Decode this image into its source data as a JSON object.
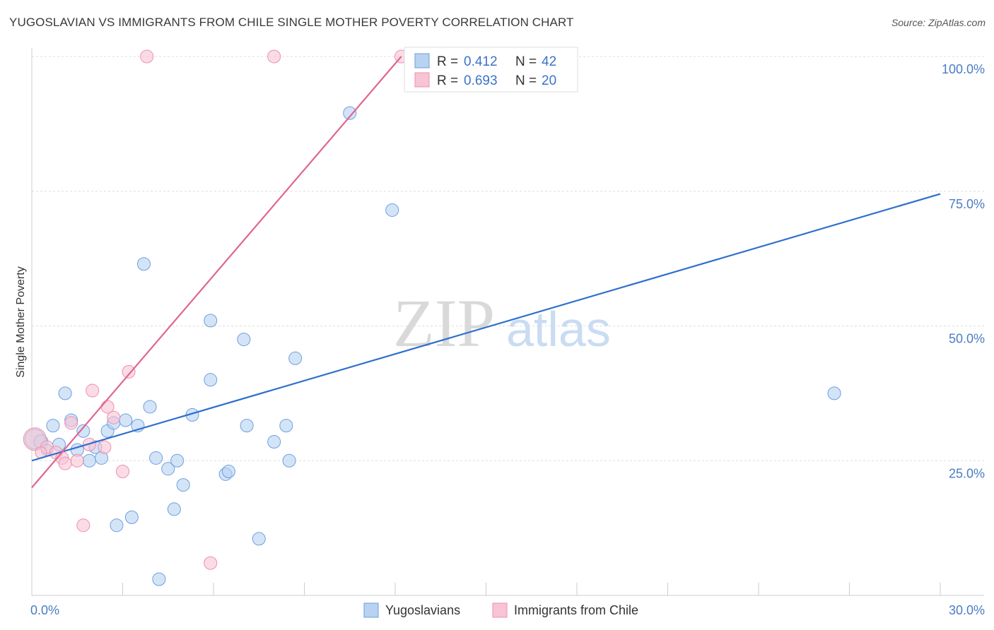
{
  "header": {
    "title": "YUGOSLAVIAN VS IMMIGRANTS FROM CHILE SINGLE MOTHER POVERTY CORRELATION CHART",
    "source": "Source: ZipAtlas.com"
  },
  "watermark": {
    "zip": "ZIP",
    "atlas": "atlas"
  },
  "colors": {
    "blue_fill": "#b8d2f2",
    "blue_stroke": "#6d9fde",
    "blue_line": "#2e6fcc",
    "pink_fill": "#f8c4d4",
    "pink_stroke": "#ec8fae",
    "pink_line": "#e0668f",
    "grid": "#dddddd",
    "label": "#4a7cc4"
  },
  "chart_data": {
    "type": "scatter",
    "title": "YUGOSLAVIAN VS IMMIGRANTS FROM CHILE SINGLE MOTHER POVERTY CORRELATION CHART",
    "xlabel": "",
    "ylabel": "Single Mother Poverty",
    "xlim": [
      0,
      30
    ],
    "ylim": [
      0,
      100
    ],
    "x_tick_labels": [
      "0.0%",
      "30.0%"
    ],
    "y_ticks": [
      25,
      50,
      75,
      100
    ],
    "y_tick_labels": [
      "25.0%",
      "50.0%",
      "75.0%",
      "100.0%"
    ],
    "grid": true,
    "legend_position": "top-center",
    "legend": [
      {
        "r_label": "R =",
        "r_value": "0.412",
        "n_label": "N =",
        "n_value": "42"
      },
      {
        "r_label": "R =",
        "r_value": "0.693",
        "n_label": "N =",
        "n_value": "20"
      }
    ],
    "series": [
      {
        "name": "Yugoslavians",
        "color": "#6d9fde",
        "trend": {
          "x": [
            0,
            30
          ],
          "y": [
            25,
            74.5
          ]
        },
        "points": [
          [
            0.1,
            29.0,
            14
          ],
          [
            0.3,
            28.5,
            10
          ],
          [
            0.5,
            27.0,
            8
          ],
          [
            0.7,
            31.5,
            9
          ],
          [
            0.9,
            28.0,
            9
          ],
          [
            1.1,
            37.5,
            9
          ],
          [
            1.3,
            32.5,
            9
          ],
          [
            1.5,
            27.0,
            9
          ],
          [
            1.7,
            30.5,
            9
          ],
          [
            1.9,
            25.0,
            9
          ],
          [
            2.1,
            27.5,
            9
          ],
          [
            2.3,
            25.5,
            9
          ],
          [
            2.5,
            30.5,
            9
          ],
          [
            2.7,
            32.0,
            9
          ],
          [
            2.8,
            13.0,
            9
          ],
          [
            3.1,
            32.5,
            9
          ],
          [
            3.3,
            14.5,
            9
          ],
          [
            3.5,
            31.5,
            9
          ],
          [
            3.7,
            61.5,
            9
          ],
          [
            3.9,
            35.0,
            9
          ],
          [
            4.1,
            25.5,
            9
          ],
          [
            4.2,
            3.0,
            9
          ],
          [
            4.5,
            23.5,
            9
          ],
          [
            4.7,
            16.0,
            9
          ],
          [
            4.8,
            25.0,
            9
          ],
          [
            5.0,
            20.5,
            9
          ],
          [
            5.3,
            33.5,
            9
          ],
          [
            5.9,
            51.0,
            9
          ],
          [
            5.9,
            40.0,
            9
          ],
          [
            6.4,
            22.5,
            9
          ],
          [
            6.5,
            23.0,
            9
          ],
          [
            7.0,
            47.5,
            9
          ],
          [
            7.1,
            31.5,
            9
          ],
          [
            7.5,
            10.5,
            9
          ],
          [
            8.0,
            28.5,
            9
          ],
          [
            8.4,
            31.5,
            9
          ],
          [
            8.5,
            25.0,
            9
          ],
          [
            8.7,
            44.0,
            9
          ],
          [
            10.5,
            89.5,
            9
          ],
          [
            11.9,
            71.5,
            9
          ],
          [
            13.0,
            100.5,
            9
          ],
          [
            26.5,
            37.5,
            9
          ]
        ]
      },
      {
        "name": "Immigrants from Chile",
        "color": "#ec8fae",
        "trend": {
          "x": [
            0,
            12.2
          ],
          "y": [
            20,
            100
          ]
        },
        "points": [
          [
            0.1,
            29.0,
            16
          ],
          [
            0.5,
            27.5,
            9
          ],
          [
            0.8,
            26.5,
            9
          ],
          [
            1.0,
            25.5,
            9
          ],
          [
            1.1,
            24.5,
            9
          ],
          [
            1.3,
            32.0,
            9
          ],
          [
            1.5,
            25.0,
            9
          ],
          [
            1.7,
            13.0,
            9
          ],
          [
            1.9,
            28.0,
            9
          ],
          [
            2.0,
            38.0,
            9
          ],
          [
            2.4,
            27.5,
            9
          ],
          [
            2.5,
            35.0,
            9
          ],
          [
            2.7,
            33.0,
            9
          ],
          [
            3.0,
            23.0,
            9
          ],
          [
            3.2,
            41.5,
            9
          ],
          [
            3.8,
            100.0,
            9
          ],
          [
            5.9,
            6.0,
            9
          ],
          [
            8.0,
            100.0,
            9
          ],
          [
            12.2,
            100.0,
            9
          ],
          [
            0.3,
            26.5,
            8
          ]
        ]
      }
    ]
  }
}
